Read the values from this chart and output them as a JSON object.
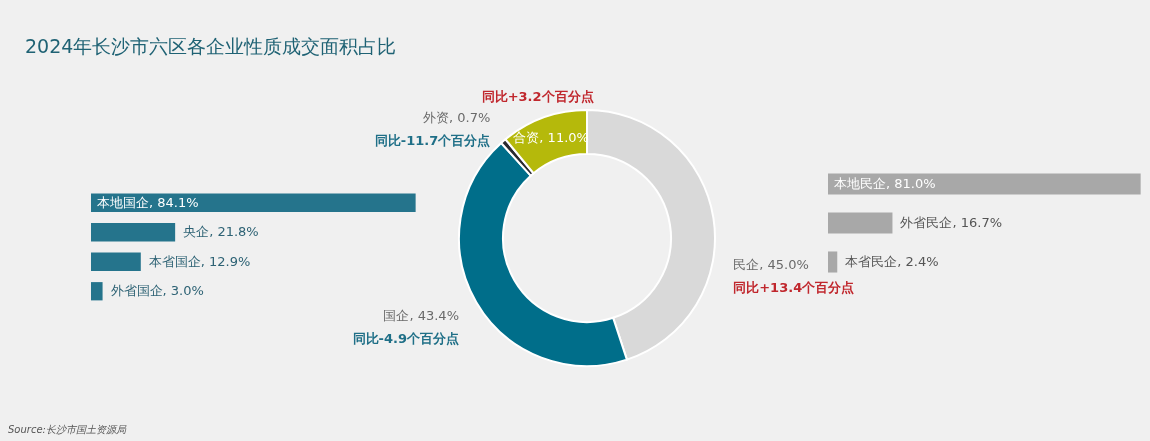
{
  "chart_data": [
    {
      "type": "bar",
      "orientation": "horizontal",
      "title": "2024年长沙市六区各企业性质成交面积占比",
      "categories": [
        null,
        null,
        null,
        null
      ],
      "values": [
        84.1,
        21.8,
        12.9,
        3.0
      ],
      "value_labels": [
        "本地国企, 84.1%",
        "央企, 21.8%",
        "本省国企, 12.9%",
        "外省国企, 3.0%"
      ],
      "color": "#25748c",
      "annotations": [
        "Source:长沙市国土资源局"
      ]
    },
    {
      "type": "donut",
      "categories": [
        "民企",
        "国企",
        "外资",
        "合资"
      ],
      "values": [
        45.0,
        43.4,
        0.7,
        11.0
      ],
      "value_labels": [
        "45.0%",
        "43.4%",
        "0.7%",
        "11.0%"
      ],
      "colors": [
        "#d9d9d9",
        "#006e8a",
        "#2a2a30",
        "#b5b90b"
      ],
      "annotations": [
        "同比+13.4个百分点",
        "同比-4.9个百分点",
        "同比-11.7个百分点",
        "同比+3.2个百分点"
      ]
    },
    {
      "type": "bar",
      "orientation": "horizontal",
      "categories": [
        null,
        null,
        null
      ],
      "values": [
        81.0,
        16.7,
        2.4
      ],
      "value_labels": [
        "本地民企, 81.0%",
        "外省民企, 16.7%",
        "本省民企, 2.4%"
      ],
      "color": "#a8a8a8"
    }
  ]
}
